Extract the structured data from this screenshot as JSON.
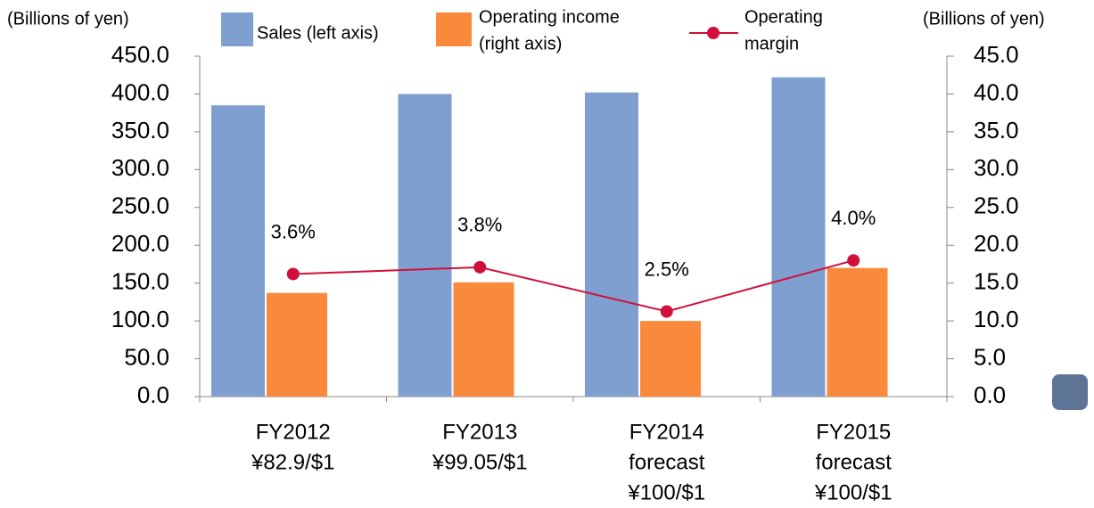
{
  "chart_data": {
    "type": "bar",
    "y_label": "(Billions of yen)",
    "y2_label": "(Billions of yen)",
    "categories": [
      [
        "FY2012",
        "¥82.9/$1"
      ],
      [
        "FY2013",
        "¥99.05/$1"
      ],
      [
        "FY2014",
        "forecast",
        "¥100/$1"
      ],
      [
        "FY2015",
        "forecast",
        "¥100/$1"
      ]
    ],
    "ylim": [
      0,
      450
    ],
    "yticks": [
      {
        "value": 0,
        "label": "0.0"
      },
      {
        "value": 50,
        "label": "50.0"
      },
      {
        "value": 100,
        "label": "100.0"
      },
      {
        "value": 150,
        "label": "150.0"
      },
      {
        "value": 200,
        "label": "200.0"
      },
      {
        "value": 250,
        "label": "250.0"
      },
      {
        "value": 300,
        "label": "300.0"
      },
      {
        "value": 350,
        "label": "350.0"
      },
      {
        "value": 400,
        "label": "400.0"
      },
      {
        "value": 450,
        "label": "450.0"
      }
    ],
    "y2lim": [
      0,
      45
    ],
    "y2ticks": [
      {
        "value": 0,
        "label": "0.0"
      },
      {
        "value": 5,
        "label": "5.0"
      },
      {
        "value": 10,
        "label": "10.0"
      },
      {
        "value": 15,
        "label": "15.0"
      },
      {
        "value": 20,
        "label": "20.0"
      },
      {
        "value": 25,
        "label": "25.0"
      },
      {
        "value": 30,
        "label": "30.0"
      },
      {
        "value": 35,
        "label": "35.0"
      },
      {
        "value": 40,
        "label": "40.0"
      },
      {
        "value": 45,
        "label": "45.0"
      }
    ],
    "y3lim": [
      0,
      10
    ],
    "series": [
      {
        "name": [
          "Sales (left axis)"
        ],
        "type": "bar",
        "color": "#7f9fd0",
        "values": [
          385,
          400,
          402,
          422
        ]
      },
      {
        "name": [
          "Operating income",
          "(right axis)"
        ],
        "type": "bar",
        "axis": "y2",
        "color": "#f98a3c",
        "values": [
          13.7,
          15.1,
          10.0,
          17.0
        ]
      },
      {
        "name": [
          "Operating",
          "margin"
        ],
        "type": "line",
        "axis": "y3",
        "color": "#d0103a",
        "values": [
          3.6,
          3.8,
          2.5,
          4.0
        ],
        "value_labels": [
          "3.6%",
          "3.8%",
          "2.5%",
          "4.0%"
        ]
      }
    ]
  }
}
